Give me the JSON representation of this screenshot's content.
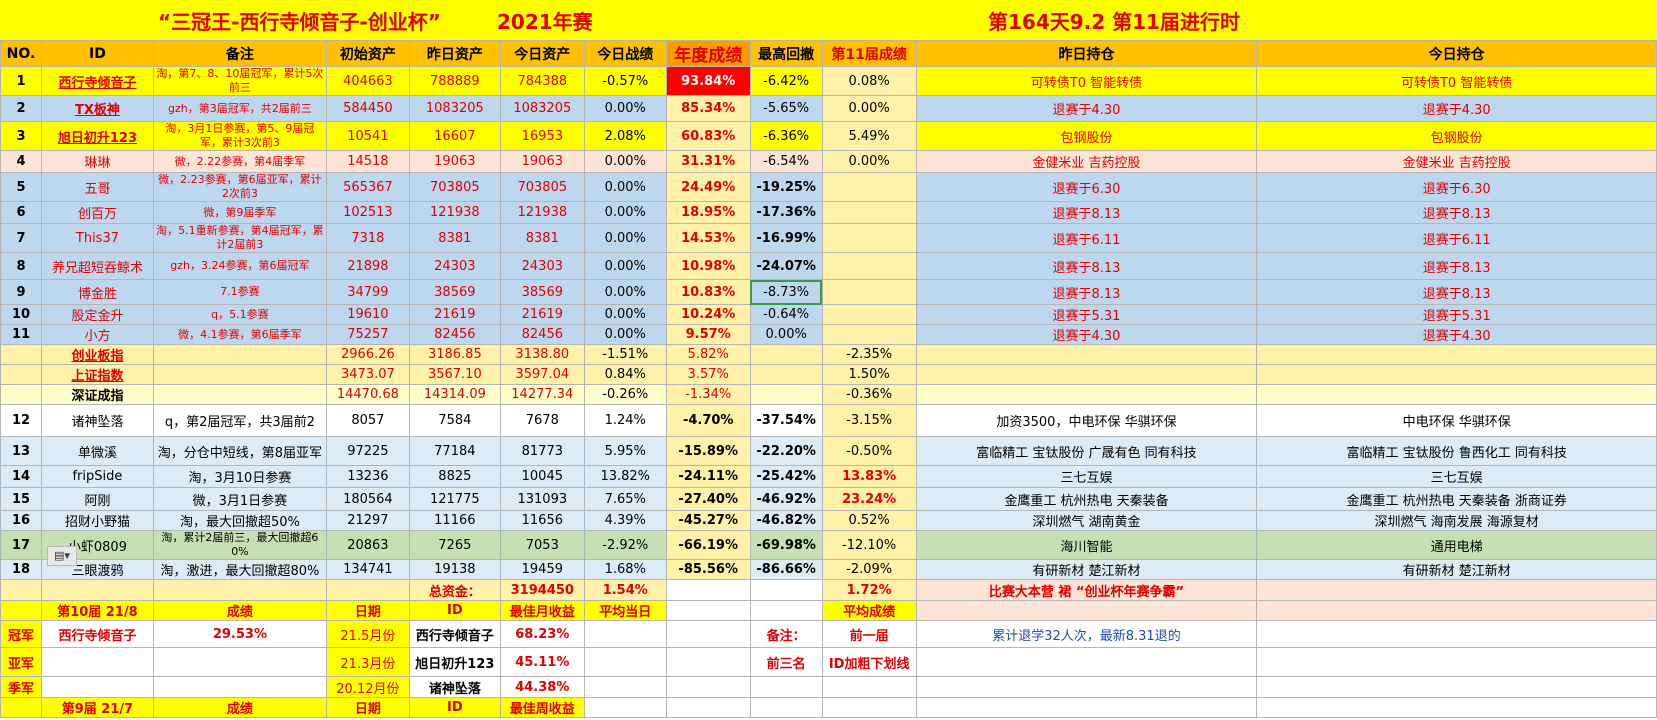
{
  "title": {
    "main": "“三冠王-西行寺倾音子-创业杯”",
    "year": "2021年赛",
    "day": "第164天9.2 第11届进行时"
  },
  "headers": [
    "NO.",
    "ID",
    "备注",
    "初始资产",
    "昨日资产",
    "今日资产",
    "今日战绩",
    "年度成绩",
    "最高回撤",
    "第11届成绩",
    "昨日持仓",
    "今日持仓"
  ],
  "rows_top": [
    {
      "no": "1",
      "id": "西行寺倾音子",
      "note": "淘，第7、8、10届冠军，累计5次前三",
      "init": "404663",
      "yest": "788889",
      "today": "784388",
      "daily": "-0.57%",
      "annual": "93.84%",
      "dd": "-6.42%",
      "s11": "0.08%",
      "yhold": "可转债T0 智能转债",
      "thold": "可转债T0 智能转债"
    },
    {
      "no": "2",
      "id": "TX板神",
      "note": "gzh，第3届冠军，共2届前三",
      "init": "584450",
      "yest": "1083205",
      "today": "1083205",
      "daily": "0.00%",
      "annual": "85.34%",
      "dd": "-5.65%",
      "s11": "0.00%",
      "yhold": "退赛于4.30",
      "thold": "退赛于4.30"
    },
    {
      "no": "3",
      "id": "旭日初升123",
      "note": "淘，3月1日参赛，第5、9届冠军，累计3次前3",
      "init": "10541",
      "yest": "16607",
      "today": "16953",
      "daily": "2.08%",
      "annual": "60.83%",
      "dd": "-6.36%",
      "s11": "5.49%",
      "yhold": "包钢股份",
      "thold": "包钢股份"
    },
    {
      "no": "4",
      "id": "琳琳",
      "note": "微，2.22参赛，第4届季军",
      "init": "14518",
      "yest": "19063",
      "today": "19063",
      "daily": "0.00%",
      "annual": "31.31%",
      "dd": "-6.54%",
      "s11": "0.00%",
      "yhold": "金健米业 吉药控股",
      "thold": "金健米业 吉药控股"
    },
    {
      "no": "5",
      "id": "五哥",
      "note": "微，2.23参赛，第6届亚军，累计2次前3",
      "init": "565367",
      "yest": "703805",
      "today": "703805",
      "daily": "0.00%",
      "annual": "24.49%",
      "dd": "-19.25%",
      "s11": "",
      "yhold": "退赛于6.30",
      "thold": "退赛于6.30"
    },
    {
      "no": "6",
      "id": "创百万",
      "note": "微，第9届季军",
      "init": "102513",
      "yest": "121938",
      "today": "121938",
      "daily": "0.00%",
      "annual": "18.95%",
      "dd": "-17.36%",
      "s11": "",
      "yhold": "退赛于8.13",
      "thold": "退赛于8.13"
    },
    {
      "no": "7",
      "id": "This37",
      "note": "淘，5.1重新参赛，第4届冠军，累计2届前3",
      "init": "7318",
      "yest": "8381",
      "today": "8381",
      "daily": "0.00%",
      "annual": "14.53%",
      "dd": "-16.99%",
      "s11": "",
      "yhold": "退赛于6.11",
      "thold": "退赛于6.11"
    },
    {
      "no": "8",
      "id": "养兄超短吞鲸术",
      "note": "gzh，3.24参赛，第6届冠军",
      "init": "21898",
      "yest": "24303",
      "today": "24303",
      "daily": "0.00%",
      "annual": "10.98%",
      "dd": "-24.07%",
      "s11": "",
      "yhold": "退赛于8.13",
      "thold": "退赛于8.13"
    },
    {
      "no": "9",
      "id": "博金胜",
      "note": "7.1参赛",
      "init": "34799",
      "yest": "38569",
      "today": "38569",
      "daily": "0.00%",
      "annual": "10.83%",
      "dd": "-8.73%",
      "s11": "",
      "yhold": "退赛于8.13",
      "thold": "退赛于8.13"
    },
    {
      "no": "10",
      "id": "股定金升",
      "note": "q，5.1参赛",
      "init": "19610",
      "yest": "21619",
      "today": "21619",
      "daily": "0.00%",
      "annual": "10.24%",
      "dd": "-0.64%",
      "s11": "",
      "yhold": "退赛于5.31",
      "thold": "退赛于5.31"
    },
    {
      "no": "11",
      "id": "小方",
      "note": "微，4.1参赛，第6届季军",
      "init": "75257",
      "yest": "82456",
      "today": "82456",
      "daily": "0.00%",
      "annual": "9.57%",
      "dd": "0.00%",
      "s11": "",
      "yhold": "退赛于4.30",
      "thold": "退赛于4.30"
    }
  ],
  "indices": [
    {
      "name": "创业板指",
      "init": "2966.26",
      "yest": "3186.85",
      "today": "3138.80",
      "daily": "-1.51%",
      "annual": "5.82%",
      "s11": "-2.35%"
    },
    {
      "name": "上证指数",
      "init": "3473.07",
      "yest": "3567.10",
      "today": "3597.04",
      "daily": "0.84%",
      "annual": "3.57%",
      "s11": "1.50%"
    },
    {
      "name": "深证成指",
      "init": "14470.68",
      "yest": "14314.09",
      "today": "14277.34",
      "daily": "-0.26%",
      "annual": "-1.34%",
      "s11": "-0.36%"
    }
  ],
  "rows_bottom": [
    {
      "no": "12",
      "id": "诸神坠落",
      "note": "q，第2届冠军，共3届前2",
      "init": "8057",
      "yest": "7584",
      "today": "7678",
      "daily": "1.24%",
      "annual": "-4.70%",
      "dd": "-37.54%",
      "s11": "-3.15%",
      "yhold": "加资3500，中电环保 华骐环保",
      "thold": "中电环保 华骐环保"
    },
    {
      "no": "13",
      "id": "单微溪",
      "note": "淘，分仓中短线，第8届亚军",
      "init": "97225",
      "yest": "77184",
      "today": "81773",
      "daily": "5.95%",
      "annual": "-15.89%",
      "dd": "-22.20%",
      "s11": "-0.50%",
      "yhold": "富临精工 宝钛股份 广晟有色 同有科技",
      "thold": "富临精工 宝钛股份 鲁西化工 同有科技"
    },
    {
      "no": "14",
      "id": "fripSide",
      "note": "淘，3月10日参赛",
      "init": "13236",
      "yest": "8825",
      "today": "10045",
      "daily": "13.82%",
      "annual": "-24.11%",
      "dd": "-25.42%",
      "s11": "13.83%",
      "yhold": "三七互娱",
      "thold": "三七互娱"
    },
    {
      "no": "15",
      "id": "阿刚",
      "note": "微，3月1日参赛",
      "init": "180564",
      "yest": "121775",
      "today": "131093",
      "daily": "7.65%",
      "annual": "-27.40%",
      "dd": "-46.92%",
      "s11": "23.24%",
      "yhold": "金鹰重工 杭州热电 天秦装备",
      "thold": "金鹰重工 杭州热电 天秦装备 浙商证券"
    },
    {
      "no": "16",
      "id": "招财小野猫",
      "note": "淘，最大回撤超50%",
      "init": "21297",
      "yest": "11166",
      "today": "11656",
      "daily": "4.39%",
      "annual": "-45.27%",
      "dd": "-46.82%",
      "s11": "0.52%",
      "yhold": "深圳燃气 湖南黄金",
      "thold": "深圳燃气 海南发展 海源复材"
    },
    {
      "no": "17",
      "id": "小虾0809",
      "note": "淘，累计2届前三，最大回撤超60%",
      "init": "20863",
      "yest": "7265",
      "today": "7053",
      "daily": "-2.92%",
      "annual": "-66.19%",
      "dd": "-69.98%",
      "s11": "-12.10%",
      "yhold": "海川智能",
      "thold": "通用电梯"
    },
    {
      "no": "18",
      "id": "三眼渡鸦",
      "note": "淘，激进，最大回撤超80%",
      "init": "134741",
      "yest": "19138",
      "today": "19459",
      "daily": "1.68%",
      "annual": "-85.56%",
      "dd": "-86.66%",
      "s11": "-2.09%",
      "yhold": "有研新材 楚江新材",
      "thold": "有研新材 楚江新材"
    }
  ],
  "totals": {
    "label": "总资金：",
    "value": "3194450",
    "daily": "1.54%",
    "s11": "1.72%",
    "camp": "比赛大本营 裙 “创业杯年赛争霸”"
  },
  "season10": {
    "header": {
      "title": "第10届 21/8",
      "score": "成绩",
      "date": "日期",
      "id": "ID",
      "best": "最佳月收益",
      "avg": "平均当日",
      "avg2": "平均成绩"
    },
    "champion": {
      "rank": "冠军",
      "id": "西行寺倾音子",
      "score": "29.53%",
      "date": "21.5月份",
      "best_id": "西行寺倾音子",
      "best": "68.23%"
    },
    "runner": {
      "rank": "亚军",
      "date": "21.3月份",
      "best_id": "旭日初升123",
      "best": "45.11%"
    },
    "third": {
      "rank": "季军",
      "date": "20.12月份",
      "best_id": "诸神坠落",
      "best": "44.38%"
    },
    "note_label": "备注：",
    "note_value": "前一届",
    "top3_label": "前三名",
    "top3_value": "ID加粗下划线",
    "quit_note": "累计退学32人次，最新8.31退的"
  },
  "season9": {
    "title": "第9届 21/7",
    "score": "成绩",
    "date": "日期",
    "id": "ID",
    "best": "最佳周收益"
  },
  "paste_icon": "clipboard-icon"
}
